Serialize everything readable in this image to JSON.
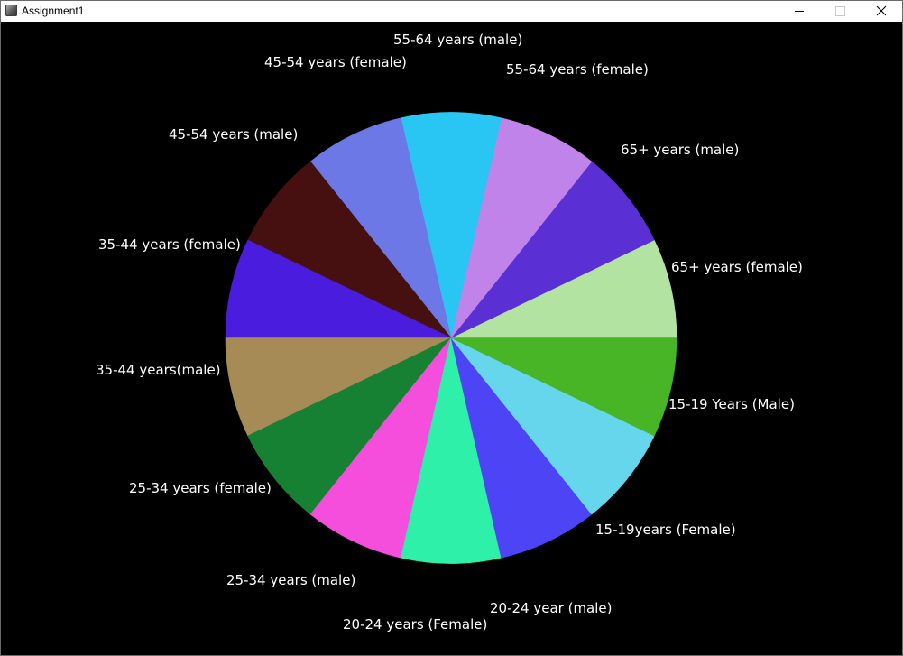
{
  "window": {
    "title": "Assignment1",
    "icons": {
      "app": "java-app-icon",
      "minimize": "minimize-icon",
      "maximize": "maximize-icon",
      "close": "close-icon"
    }
  },
  "chart_data": {
    "type": "pie",
    "title": "",
    "start_angle_deg": 0,
    "direction": "counterclockwise",
    "background": "#000000",
    "label_color": "#ffffff",
    "slices": [
      {
        "label": "65+ years (female)",
        "value": 1,
        "color": "#b3e3a0"
      },
      {
        "label": "65+ years (male)",
        "value": 1,
        "color": "#5a30d4"
      },
      {
        "label": "55-64 years (female)",
        "value": 1,
        "color": "#c083ea"
      },
      {
        "label": "55-64 years (male)",
        "value": 1,
        "color": "#29c6f4"
      },
      {
        "label": "45-54 years (female)",
        "value": 1,
        "color": "#6c78e6"
      },
      {
        "label": "45-54 years (male)",
        "value": 1,
        "color": "#461010"
      },
      {
        "label": "35-44 years (female)",
        "value": 1,
        "color": "#4a1cdd"
      },
      {
        "label": "35-44 years(male)",
        "value": 1,
        "color": "#a68b57"
      },
      {
        "label": "25-34 years (female)",
        "value": 1,
        "color": "#168133"
      },
      {
        "label": "25-34 years (male)",
        "value": 1,
        "color": "#f54edd"
      },
      {
        "label": "20-24 years (Female)",
        "value": 1,
        "color": "#2ff0a8"
      },
      {
        "label": "20-24 year (male)",
        "value": 1,
        "color": "#4d45f5"
      },
      {
        "label": "15-19years (Female)",
        "value": 1,
        "color": "#66d6ec"
      },
      {
        "label": "15-19 Years (Male)",
        "value": 1,
        "color": "#47b526"
      }
    ]
  }
}
